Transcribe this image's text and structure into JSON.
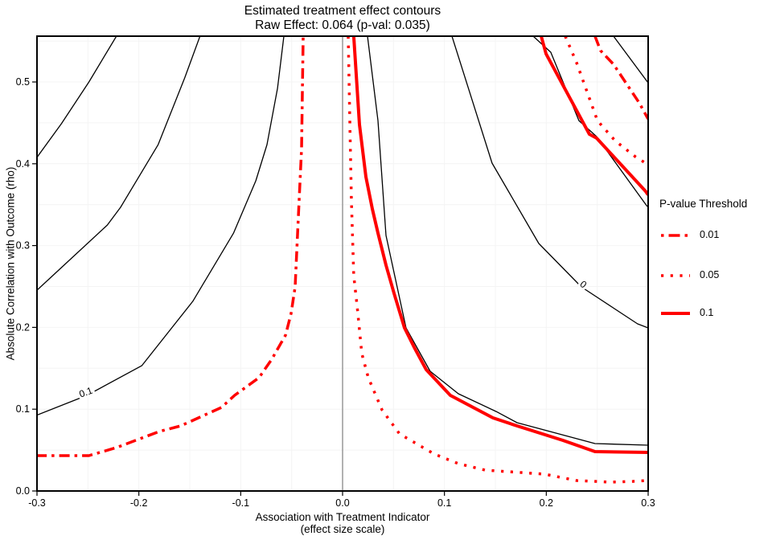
{
  "title": {
    "line1": "Estimated treatment effect contours",
    "line2": "Raw Effect: 0.064 (p-val: 0.035)"
  },
  "axes": {
    "x": {
      "label_line1": "Association with Treatment Indicator",
      "label_line2": "(effect size scale)",
      "min": -0.3,
      "max": 0.3,
      "ticks": [
        {
          "v": -0.3,
          "label": "-0.3"
        },
        {
          "v": -0.2,
          "label": "-0.2"
        },
        {
          "v": -0.1,
          "label": "-0.1"
        },
        {
          "v": 0.0,
          "label": "0.0"
        },
        {
          "v": 0.1,
          "label": "0.1"
        },
        {
          "v": 0.2,
          "label": "0.2"
        },
        {
          "v": 0.3,
          "label": "0.3"
        }
      ],
      "grid_step": 0.05
    },
    "y": {
      "label": "Absolute Correlation with Outcome (rho)",
      "min": 0,
      "max": 0.556,
      "ticks": [
        {
          "v": 0.0,
          "label": "0.0"
        },
        {
          "v": 0.1,
          "label": "0.1"
        },
        {
          "v": 0.2,
          "label": "0.2"
        },
        {
          "v": 0.3,
          "label": "0.3"
        },
        {
          "v": 0.4,
          "label": "0.4"
        },
        {
          "v": 0.5,
          "label": "0.5"
        }
      ],
      "grid_step": 0.05
    }
  },
  "legend": {
    "title": "P-value Threshold",
    "entries": [
      {
        "label": "0.01",
        "style": "dashdot"
      },
      {
        "label": "0.05",
        "style": "dotted"
      },
      {
        "label": "0.1",
        "style": "solid"
      }
    ]
  },
  "colors": {
    "threshold": "#FF0000",
    "contour": "#000000",
    "refline": "#9E9E9E",
    "grid": "#F4F4F4"
  },
  "chart_data": {
    "type": "contour",
    "title": "Estimated treatment effect contours",
    "subtitle": "Raw Effect: 0.064 (p-val: 0.035)",
    "raw_effect": 0.064,
    "raw_p_value": 0.035,
    "xlabel": "Association with Treatment Indicator (effect size scale)",
    "ylabel": "Absolute Correlation with Outcome (rho)",
    "xlim": [
      -0.3,
      0.3
    ],
    "ylim": [
      0,
      0.556
    ],
    "refline_x": 0,
    "contour_labels": [
      {
        "text": "0.1",
        "x": -0.251,
        "y": 0.117,
        "angle": -20
      },
      {
        "text": "0",
        "x": 0.2344,
        "y": 0.2495,
        "angle": 38
      }
    ],
    "series": [
      {
        "name": "effect-contour-left-outer",
        "stroke": "contour",
        "style": "solid",
        "width": 1.3,
        "points": [
          [
            -0.3007,
            0.4067
          ],
          [
            -0.276,
            0.449
          ],
          [
            -0.249,
            0.5
          ],
          [
            -0.222,
            0.556
          ]
        ]
      },
      {
        "name": "effect-contour-left-middle",
        "stroke": "contour",
        "style": "solid",
        "width": 1.3,
        "points": [
          [
            -0.3007,
            0.2446
          ],
          [
            -0.282,
            0.2662
          ],
          [
            -0.231,
            0.3251
          ],
          [
            -0.218,
            0.3468
          ],
          [
            -0.181,
            0.4235
          ],
          [
            -0.155,
            0.505
          ],
          [
            -0.14,
            0.556
          ]
        ]
      },
      {
        "name": "effect-contour-0.1",
        "stroke": "contour",
        "style": "solid",
        "width": 1.3,
        "points": [
          [
            -0.3007,
            0.0924
          ],
          [
            -0.251,
            0.1169
          ],
          [
            -0.197,
            0.1533
          ],
          [
            -0.147,
            0.2319
          ],
          [
            -0.107,
            0.3154
          ],
          [
            -0.0852,
            0.3792
          ],
          [
            -0.0742,
            0.4234
          ],
          [
            -0.0639,
            0.4922
          ],
          [
            -0.0576,
            0.556
          ]
        ]
      },
      {
        "name": "pval-0.01-left",
        "stroke": "threshold",
        "style": "dashdot",
        "width": 3.5,
        "points": [
          [
            -0.3007,
            0.0432
          ],
          [
            -0.249,
            0.0432
          ],
          [
            -0.222,
            0.053
          ],
          [
            -0.18,
            0.0727
          ],
          [
            -0.159,
            0.0796
          ],
          [
            -0.119,
            0.1021
          ],
          [
            -0.106,
            0.1169
          ],
          [
            -0.082,
            0.1385
          ],
          [
            -0.0695,
            0.1611
          ],
          [
            -0.056,
            0.1906
          ],
          [
            -0.0505,
            0.2171
          ],
          [
            -0.0466,
            0.2495
          ],
          [
            -0.0434,
            0.335
          ],
          [
            -0.0403,
            0.4185
          ],
          [
            -0.0387,
            0.556
          ]
        ]
      },
      {
        "name": "effect-contour-right-inner",
        "stroke": "contour",
        "style": "solid",
        "width": 1.3,
        "points": [
          [
            0.0245,
            0.556
          ],
          [
            0.0347,
            0.4528
          ],
          [
            0.0426,
            0.3124
          ],
          [
            0.0623,
            0.1994
          ],
          [
            0.086,
            0.1464
          ],
          [
            0.1137,
            0.1189
          ],
          [
            0.1508,
            0.0972
          ],
          [
            0.1713,
            0.0835
          ],
          [
            0.2478,
            0.058
          ],
          [
            0.2999,
            0.056
          ]
        ]
      },
      {
        "name": "effect-contour-0",
        "stroke": "contour",
        "style": "solid",
        "width": 1.3,
        "points": [
          [
            0.1074,
            0.556
          ],
          [
            0.1468,
            0.4008
          ],
          [
            0.1926,
            0.3026
          ],
          [
            0.2344,
            0.2495
          ],
          [
            0.2896,
            0.2043
          ],
          [
            0.2999,
            0.1994
          ]
        ]
      },
      {
        "name": "effect-contour-right-upper",
        "stroke": "contour",
        "style": "solid",
        "width": 1.3,
        "points": [
          [
            0.1871,
            0.556
          ],
          [
            0.2044,
            0.5364
          ],
          [
            0.232,
            0.4528
          ],
          [
            0.2494,
            0.4332
          ],
          [
            0.2991,
            0.3477
          ]
        ]
      },
      {
        "name": "effect-contour-right-corner",
        "stroke": "contour",
        "style": "solid",
        "width": 1.3,
        "points": [
          [
            0.266,
            0.556
          ],
          [
            0.2999,
            0.499
          ]
        ]
      },
      {
        "name": "pval-0.05-right",
        "stroke": "threshold",
        "style": "dotted",
        "width": 3.5,
        "points": [
          [
            0.0055,
            0.556
          ],
          [
            0.0071,
            0.4528
          ],
          [
            0.0087,
            0.3546
          ],
          [
            0.011,
            0.2632
          ],
          [
            0.0142,
            0.2269
          ],
          [
            0.0189,
            0.168
          ],
          [
            0.0253,
            0.1385
          ],
          [
            0.0387,
            0.0992
          ],
          [
            0.056,
            0.0697
          ],
          [
            0.09,
            0.0452
          ],
          [
            0.1137,
            0.0334
          ],
          [
            0.1397,
            0.0255
          ],
          [
            0.1981,
            0.0206
          ],
          [
            0.2297,
            0.0128
          ],
          [
            0.2636,
            0.0108
          ],
          [
            0.2857,
            0.0118
          ],
          [
            0.2991,
            0.0128
          ]
        ]
      },
      {
        "name": "pval-0.1-right",
        "stroke": "threshold",
        "style": "solid",
        "width": 4,
        "points": [
          [
            0.011,
            0.556
          ],
          [
            0.0166,
            0.4479
          ],
          [
            0.0229,
            0.3841
          ],
          [
            0.0292,
            0.3448
          ],
          [
            0.0347,
            0.3153
          ],
          [
            0.0426,
            0.276
          ],
          [
            0.0505,
            0.2417
          ],
          [
            0.0608,
            0.1994
          ],
          [
            0.0702,
            0.1759
          ],
          [
            0.0821,
            0.1483
          ],
          [
            0.1058,
            0.1169
          ],
          [
            0.1476,
            0.0894
          ],
          [
            0.1713,
            0.0796
          ],
          [
            0.2163,
            0.0619
          ],
          [
            0.2478,
            0.0481
          ],
          [
            0.2999,
            0.0472
          ]
        ]
      },
      {
        "name": "pval-0.1-upper-right",
        "stroke": "threshold",
        "style": "solid",
        "width": 4,
        "points": [
          [
            0.195,
            0.556
          ],
          [
            0.1997,
            0.5345
          ],
          [
            0.2423,
            0.4362
          ],
          [
            0.2494,
            0.4313
          ],
          [
            0.2975,
            0.3664
          ],
          [
            0.2999,
            0.362
          ]
        ]
      },
      {
        "name": "pval-0.05-upper-right",
        "stroke": "threshold",
        "style": "dotted",
        "width": 3.5,
        "points": [
          [
            0.2186,
            0.556
          ],
          [
            0.2297,
            0.5236
          ],
          [
            0.2502,
            0.4528
          ],
          [
            0.2675,
            0.4283
          ],
          [
            0.2873,
            0.4087
          ],
          [
            0.2999,
            0.3989
          ]
        ]
      },
      {
        "name": "pval-0.01-upper-right",
        "stroke": "threshold",
        "style": "dashdot",
        "width": 3.5,
        "points": [
          [
            0.2478,
            0.556
          ],
          [
            0.2533,
            0.5383
          ],
          [
            0.266,
            0.5216
          ],
          [
            0.2818,
            0.4921
          ],
          [
            0.2912,
            0.4745
          ],
          [
            0.2999,
            0.4548
          ]
        ]
      }
    ]
  }
}
